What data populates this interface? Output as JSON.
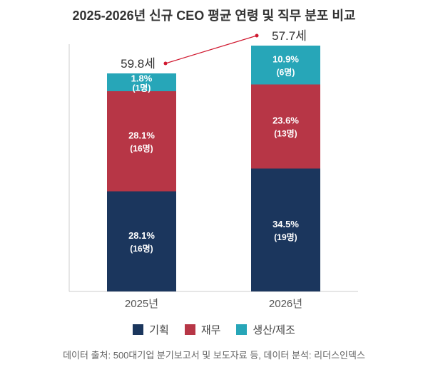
{
  "chart_data": {
    "type": "bar",
    "stacked": true,
    "title": "2025-2026년 신규 CEO 평균 연령 및 직무 분포 비교",
    "categories": [
      "2025년",
      "2026년"
    ],
    "series": [
      {
        "name": "기획",
        "color": "#1b365d",
        "values": [
          28.1,
          34.5
        ],
        "counts": [
          "(16명)",
          "(19명)"
        ],
        "labels": [
          "28.1%",
          "34.5%"
        ]
      },
      {
        "name": "재무",
        "color": "#b73646",
        "values": [
          28.1,
          23.6
        ],
        "counts": [
          "(16명)",
          "(13명)"
        ],
        "labels": [
          "28.1%",
          "23.6%"
        ]
      },
      {
        "name": "생산/제조",
        "color": "#27a6b8",
        "values": [
          1.8,
          10.9
        ],
        "counts": [
          "(1명)",
          "(6명)"
        ],
        "labels": [
          "1.8%",
          "10.9%"
        ]
      }
    ],
    "average_age": {
      "values": [
        59.8,
        57.7
      ],
      "labels": [
        "59.8세",
        "57.7세"
      ],
      "color": "#d0182f"
    },
    "legend": "bottom",
    "source": "데이터 출처: 500대기업 분기보고서 및 보도자료 등, 데이터 분석: 리더스인덱스"
  }
}
